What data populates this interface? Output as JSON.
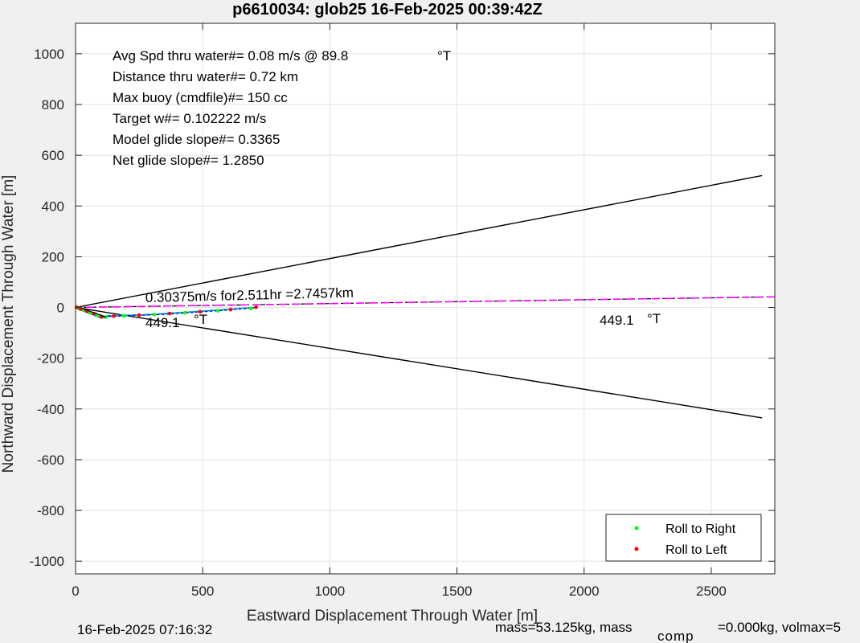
{
  "chart_data": {
    "type": "line",
    "title": "p6610034: glob25 16-Feb-2025 00:39:42Z",
    "xlabel": "Eastward Displacement Through Water [m]",
    "ylabel": "Northward Displacement Through Water [m]",
    "xlim": [
      0,
      2750
    ],
    "ylim": [
      -1050,
      1120
    ],
    "xticks": [
      0,
      500,
      1000,
      1500,
      2000,
      2500
    ],
    "yticks": [
      -1000,
      -800,
      -600,
      -400,
      -200,
      0,
      200,
      400,
      600,
      800,
      1000
    ],
    "grid": true,
    "legend_position": "bottom-right",
    "stats": [
      "Avg Spd thru water#=  0.08 m/s @  89.8",
      "Distance thru water#=  0.72 km",
      "Max buoy (cmdfile)#= 150 cc",
      "Target w#= 0.102222 m/s",
      "Model glide slope#= 0.3365",
      "Net glide slope#= 1.2850"
    ],
    "stats_unit": "°T",
    "annotations": {
      "current": "0.30375m/s for2.511hr =2.7457km",
      "heading_near": "449.1",
      "heading_far": "449.1",
      "heading_unit": "°T"
    },
    "footer": {
      "date": "16-Feb-2025 07:16:32",
      "mass": "mass=53.125kg, mass",
      "comp_sub": "comp",
      "mass_tail": "=0.000kg, volmax=5"
    },
    "legend": [
      {
        "label": "Roll to Right",
        "color": "#00ff00"
      },
      {
        "label": "Roll to Left",
        "color": "#ff0000"
      }
    ],
    "series": [
      {
        "kind": "cone-upper",
        "color": "#000000",
        "x": [
          0,
          2700
        ],
        "y": [
          0,
          520
        ]
      },
      {
        "kind": "cone-lower",
        "color": "#000000",
        "x": [
          0,
          2700
        ],
        "y": [
          0,
          -435
        ]
      },
      {
        "kind": "current",
        "color": "#ff00ff",
        "x": [
          0,
          2750
        ],
        "y": [
          0,
          42
        ]
      },
      {
        "kind": "track-dives",
        "color": "#0072bd",
        "x": [
          0,
          8,
          18,
          25,
          35,
          45,
          55,
          62,
          70,
          80,
          92,
          100,
          112,
          125,
          140,
          160,
          185,
          210,
          240,
          270,
          300,
          330,
          360,
          390,
          420,
          450,
          480,
          510,
          540,
          570,
          600,
          625,
          650,
          675,
          700,
          715
        ],
        "y": [
          0,
          -5,
          -8,
          -12,
          -15,
          -20,
          -22,
          -26,
          -29,
          -34,
          -38,
          -42,
          -40,
          -36,
          -35,
          -34,
          -33,
          -32,
          -30,
          -30,
          -28,
          -26,
          -24,
          -22,
          -20,
          -18,
          -16,
          -14,
          -12,
          -10,
          -8,
          -6,
          -4,
          -2,
          0,
          2
        ]
      },
      {
        "kind": "track-surface",
        "color": "#00bfbf",
        "x": [
          0,
          10,
          22,
          30,
          40,
          52,
          65,
          78,
          90,
          105,
          120,
          150,
          200,
          260,
          320,
          380,
          440,
          500,
          560,
          620,
          680,
          715
        ],
        "y": [
          2,
          -2,
          -6,
          -9,
          -13,
          -16,
          -20,
          -25,
          -30,
          -33,
          -32,
          -31,
          -30,
          -28,
          -25,
          -21,
          -17,
          -13,
          -9,
          -5,
          -1,
          3
        ]
      },
      {
        "kind": "dive-segments",
        "color": "#0000ff",
        "x": [
          5,
          15,
          28,
          40,
          52,
          66,
          80,
          95,
          110,
          130,
          170,
          230,
          290,
          350,
          410,
          470,
          530,
          590,
          650,
          705
        ],
        "y": [
          3,
          -3,
          -7,
          -11,
          -15,
          -19,
          -23,
          -28,
          -35,
          -33,
          -32,
          -31,
          -29,
          -27,
          -23,
          -19,
          -15,
          -11,
          -6,
          -1
        ]
      },
      {
        "kind": "roll-right",
        "color": "#00ff00",
        "x": [
          12,
          33,
          58,
          86,
          118,
          190,
          310,
          430,
          560,
          690
        ],
        "y": [
          -4,
          -12,
          -21,
          -31,
          -38,
          -33,
          -28,
          -21,
          -13,
          -4
        ]
      },
      {
        "kind": "roll-left",
        "color": "#ff0000",
        "x": [
          4,
          20,
          44,
          72,
          102,
          150,
          250,
          370,
          490,
          610,
          710
        ],
        "y": [
          1,
          -6,
          -14,
          -24,
          -36,
          -34,
          -30,
          -24,
          -17,
          -8,
          1
        ]
      }
    ]
  }
}
